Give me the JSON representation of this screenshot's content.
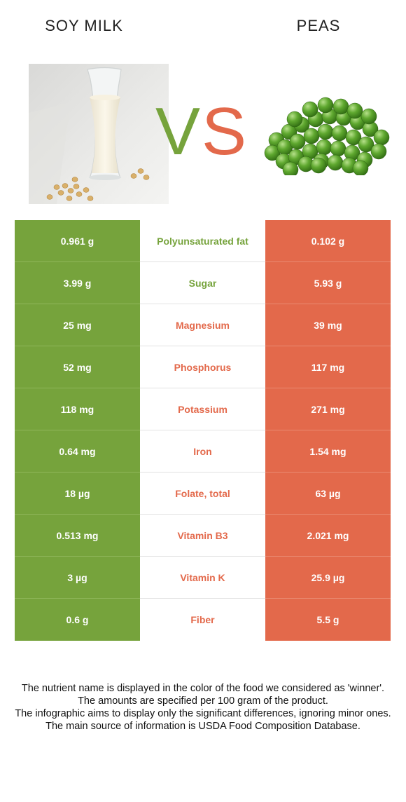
{
  "header": {
    "left_food": "SOY MILK",
    "right_food": "PEAS",
    "vs": "VS"
  },
  "colors": {
    "left_food": "#76a33c",
    "right_food": "#e3694b",
    "vs_v": "#76a33c",
    "vs_s": "#e3694b"
  },
  "rows": [
    {
      "nutrient": "Polyunsaturated fat",
      "left": "0.961 g",
      "right": "0.102 g",
      "winner": "left"
    },
    {
      "nutrient": "Sugar",
      "left": "3.99 g",
      "right": "5.93 g",
      "winner": "left"
    },
    {
      "nutrient": "Magnesium",
      "left": "25 mg",
      "right": "39 mg",
      "winner": "right"
    },
    {
      "nutrient": "Phosphorus",
      "left": "52 mg",
      "right": "117 mg",
      "winner": "right"
    },
    {
      "nutrient": "Potassium",
      "left": "118 mg",
      "right": "271 mg",
      "winner": "right"
    },
    {
      "nutrient": "Iron",
      "left": "0.64 mg",
      "right": "1.54 mg",
      "winner": "right"
    },
    {
      "nutrient": "Folate, total",
      "left": "18 µg",
      "right": "63 µg",
      "winner": "right"
    },
    {
      "nutrient": "Vitamin B3",
      "left": "0.513 mg",
      "right": "2.021 mg",
      "winner": "right"
    },
    {
      "nutrient": "Vitamin K",
      "left": "3 µg",
      "right": "25.9 µg",
      "winner": "right"
    },
    {
      "nutrient": "Fiber",
      "left": "0.6 g",
      "right": "5.5 g",
      "winner": "right"
    }
  ],
  "footnote": {
    "line1": "The nutrient name is displayed in the color of the food we considered as 'winner'.",
    "line2": "The amounts are specified per 100 gram of the product.",
    "line3": "The infographic aims to display only the significant differences, ignoring minor ones.",
    "line4": "The main source of information is USDA Food Composition Database."
  }
}
